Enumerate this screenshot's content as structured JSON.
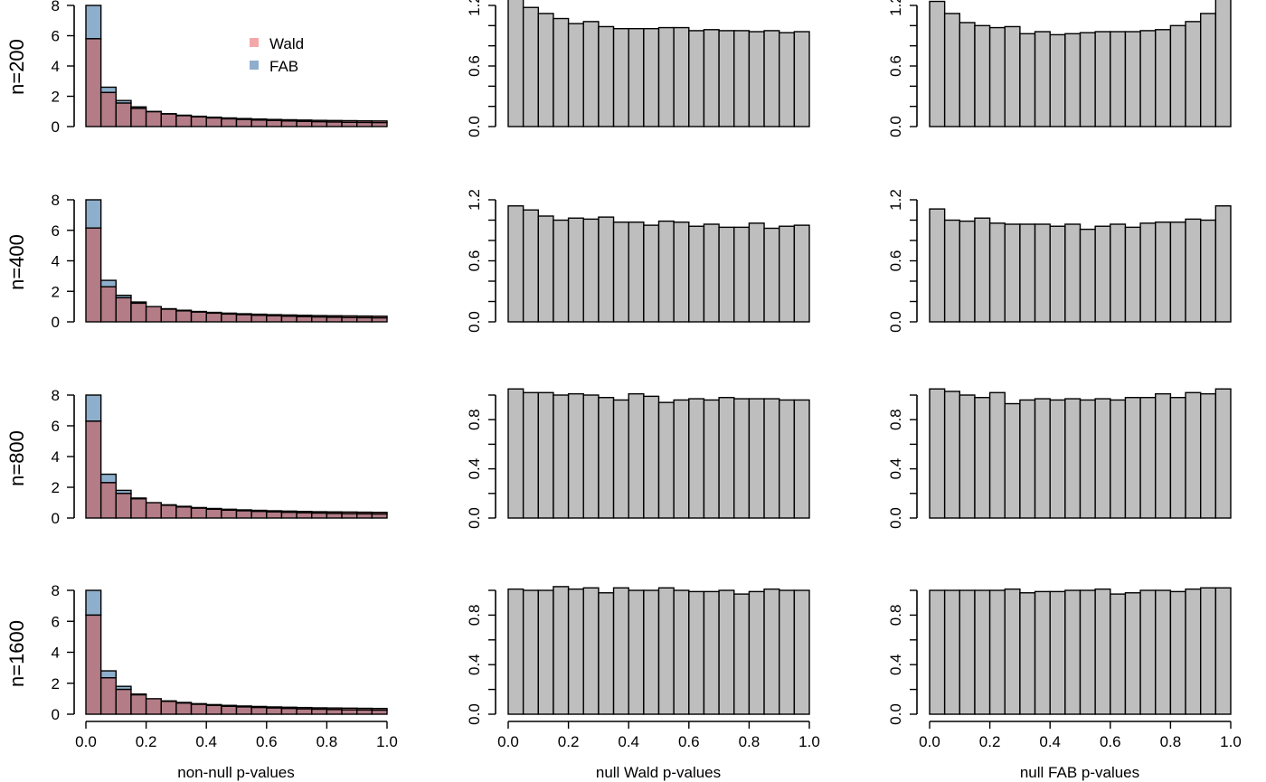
{
  "figure": {
    "row_labels": [
      "n=200",
      "n=400",
      "n=800",
      "n=1600"
    ],
    "x_labels": [
      "non-null p-values",
      "null Wald p-values",
      "null FAB p-values"
    ],
    "legend": {
      "placement": "top-right of first panel",
      "entries": [
        {
          "label": "Wald",
          "color": "#f4a7a9"
        },
        {
          "label": "FAB",
          "color": "#8faecd"
        }
      ]
    },
    "colors": {
      "wald": "#d98a8e",
      "fab": "#8eafcc",
      "overlap": "#b47c87",
      "null_bars": "#bebebe"
    }
  },
  "chart_data": [
    {
      "id": "nonnull-200",
      "type": "bar",
      "histogram": "overlaid",
      "row_label": "n=200",
      "xlabel": "",
      "xlim": [
        0,
        1
      ],
      "ylim": [
        0,
        8
      ],
      "yticks": [
        0,
        2,
        4,
        6,
        8
      ],
      "xticks": [],
      "bin_edges_step": 0.05,
      "series": [
        {
          "name": "Wald",
          "values": [
            5.8,
            2.25,
            1.55,
            1.2,
            0.98,
            0.85,
            0.75,
            0.68,
            0.62,
            0.57,
            0.53,
            0.5,
            0.47,
            0.45,
            0.43,
            0.41,
            0.4,
            0.39,
            0.38,
            0.37
          ]
        },
        {
          "name": "FAB",
          "values": [
            8.1,
            2.6,
            1.72,
            1.3,
            1.0,
            0.83,
            0.72,
            0.64,
            0.57,
            0.51,
            0.47,
            0.43,
            0.4,
            0.37,
            0.34,
            0.32,
            0.3,
            0.28,
            0.27,
            0.26
          ]
        }
      ]
    },
    {
      "id": "wald-200",
      "type": "bar",
      "row_label": "n=200",
      "xlabel": "",
      "xlim": [
        0,
        1
      ],
      "ylim": [
        0,
        1.4
      ],
      "yticks": [
        0.0,
        0.6,
        1.2
      ],
      "yticks_minor": [
        0.2,
        0.4,
        0.8,
        1.0
      ],
      "xticks": [],
      "values": [
        1.32,
        1.18,
        1.12,
        1.07,
        1.02,
        1.04,
        0.99,
        0.97,
        0.97,
        0.97,
        0.98,
        0.98,
        0.95,
        0.96,
        0.95,
        0.95,
        0.94,
        0.95,
        0.93,
        0.94
      ]
    },
    {
      "id": "fab-200",
      "type": "bar",
      "row_label": "n=200",
      "xlabel": "",
      "xlim": [
        0,
        1
      ],
      "ylim": [
        0,
        1.4
      ],
      "yticks": [
        0.0,
        0.6,
        1.2
      ],
      "yticks_minor": [
        0.2,
        0.4,
        0.8,
        1.0
      ],
      "xticks": [],
      "values": [
        1.24,
        1.12,
        1.03,
        1.0,
        0.98,
        0.99,
        0.92,
        0.94,
        0.91,
        0.92,
        0.93,
        0.94,
        0.94,
        0.94,
        0.95,
        0.96,
        1.0,
        1.04,
        1.12,
        1.32
      ]
    },
    {
      "id": "nonnull-400",
      "type": "bar",
      "histogram": "overlaid",
      "row_label": "n=400",
      "xlabel": "",
      "xlim": [
        0,
        1
      ],
      "ylim": [
        0,
        8
      ],
      "yticks": [
        0,
        2,
        4,
        6,
        8
      ],
      "xticks": [],
      "series": [
        {
          "name": "Wald",
          "values": [
            6.15,
            2.3,
            1.58,
            1.22,
            1.0,
            0.86,
            0.76,
            0.68,
            0.62,
            0.57,
            0.53,
            0.5,
            0.47,
            0.45,
            0.43,
            0.41,
            0.4,
            0.39,
            0.38,
            0.37
          ]
        },
        {
          "name": "FAB",
          "values": [
            8.4,
            2.72,
            1.74,
            1.3,
            1.0,
            0.83,
            0.72,
            0.64,
            0.57,
            0.51,
            0.47,
            0.43,
            0.4,
            0.37,
            0.34,
            0.32,
            0.3,
            0.28,
            0.27,
            0.26
          ]
        }
      ]
    },
    {
      "id": "wald-400",
      "type": "bar",
      "row_label": "n=400",
      "xlabel": "",
      "xlim": [
        0,
        1
      ],
      "ylim": [
        0,
        1.2
      ],
      "yticks": [
        0.0,
        0.6,
        1.2
      ],
      "yticks_minor": [
        0.2,
        0.4,
        0.8,
        1.0
      ],
      "xticks": [],
      "values": [
        1.14,
        1.1,
        1.04,
        1.0,
        1.02,
        1.01,
        1.03,
        0.98,
        0.98,
        0.95,
        0.99,
        0.98,
        0.94,
        0.96,
        0.93,
        0.93,
        0.97,
        0.92,
        0.94,
        0.95
      ]
    },
    {
      "id": "fab-400",
      "type": "bar",
      "row_label": "n=400",
      "xlabel": "",
      "xlim": [
        0,
        1
      ],
      "ylim": [
        0,
        1.2
      ],
      "yticks": [
        0.0,
        0.6,
        1.2
      ],
      "yticks_minor": [
        0.2,
        0.4,
        0.8,
        1.0
      ],
      "xticks": [],
      "values": [
        1.11,
        1.0,
        0.99,
        1.02,
        0.97,
        0.96,
        0.96,
        0.96,
        0.94,
        0.96,
        0.91,
        0.94,
        0.96,
        0.93,
        0.97,
        0.98,
        0.98,
        1.01,
        1.0,
        1.14
      ]
    },
    {
      "id": "nonnull-800",
      "type": "bar",
      "histogram": "overlaid",
      "row_label": "n=800",
      "xlabel": "",
      "xlim": [
        0,
        1
      ],
      "ylim": [
        0,
        8
      ],
      "yticks": [
        0,
        2,
        4,
        6,
        8
      ],
      "xticks": [],
      "series": [
        {
          "name": "Wald",
          "values": [
            6.3,
            2.3,
            1.6,
            1.25,
            1.0,
            0.86,
            0.76,
            0.68,
            0.62,
            0.57,
            0.53,
            0.5,
            0.47,
            0.45,
            0.43,
            0.41,
            0.4,
            0.39,
            0.38,
            0.37
          ]
        },
        {
          "name": "FAB",
          "values": [
            8.5,
            2.85,
            1.8,
            1.3,
            1.0,
            0.83,
            0.72,
            0.64,
            0.57,
            0.51,
            0.47,
            0.43,
            0.4,
            0.37,
            0.34,
            0.32,
            0.3,
            0.28,
            0.27,
            0.26
          ]
        }
      ]
    },
    {
      "id": "wald-800",
      "type": "bar",
      "row_label": "n=800",
      "xlabel": "",
      "xlim": [
        0,
        1
      ],
      "ylim": [
        0,
        1.0
      ],
      "yticks": [
        0.0,
        0.4,
        0.8
      ],
      "yticks_minor": [
        0.2,
        0.6,
        1.0
      ],
      "xticks": [],
      "values": [
        1.05,
        1.02,
        1.02,
        1.0,
        1.01,
        1.0,
        0.98,
        0.96,
        1.01,
        0.99,
        0.94,
        0.96,
        0.97,
        0.96,
        0.98,
        0.97,
        0.97,
        0.97,
        0.96,
        0.96
      ]
    },
    {
      "id": "fab-800",
      "type": "bar",
      "row_label": "n=800",
      "xlabel": "",
      "xlim": [
        0,
        1
      ],
      "ylim": [
        0,
        1.0
      ],
      "yticks": [
        0.0,
        0.4,
        0.8
      ],
      "yticks_minor": [
        0.2,
        0.6,
        1.0
      ],
      "xticks": [],
      "values": [
        1.05,
        1.03,
        1.0,
        0.98,
        1.02,
        0.93,
        0.96,
        0.97,
        0.96,
        0.97,
        0.96,
        0.97,
        0.96,
        0.98,
        0.98,
        1.01,
        0.98,
        1.02,
        1.01,
        1.05
      ]
    },
    {
      "id": "nonnull-1600",
      "type": "bar",
      "histogram": "overlaid",
      "row_label": "n=1600",
      "xlabel": "non-null p-values",
      "xlim": [
        0,
        1
      ],
      "ylim": [
        0,
        8
      ],
      "yticks": [
        0,
        2,
        4,
        6,
        8
      ],
      "xticks": [
        0.0,
        0.2,
        0.4,
        0.6,
        0.8,
        1.0
      ],
      "series": [
        {
          "name": "Wald",
          "values": [
            6.4,
            2.35,
            1.6,
            1.25,
            1.0,
            0.86,
            0.76,
            0.68,
            0.62,
            0.57,
            0.53,
            0.5,
            0.47,
            0.45,
            0.43,
            0.41,
            0.4,
            0.39,
            0.38,
            0.37
          ]
        },
        {
          "name": "FAB",
          "values": [
            8.7,
            2.8,
            1.8,
            1.3,
            1.0,
            0.83,
            0.72,
            0.64,
            0.57,
            0.51,
            0.47,
            0.43,
            0.4,
            0.37,
            0.34,
            0.32,
            0.3,
            0.28,
            0.27,
            0.26
          ]
        }
      ]
    },
    {
      "id": "wald-1600",
      "type": "bar",
      "row_label": "n=1600",
      "xlabel": "null Wald p-values",
      "xlim": [
        0,
        1
      ],
      "ylim": [
        0,
        1.0
      ],
      "yticks": [
        0.0,
        0.4,
        0.8
      ],
      "yticks_minor": [
        0.2,
        0.6,
        1.0
      ],
      "xticks": [
        0.0,
        0.2,
        0.4,
        0.6,
        0.8,
        1.0
      ],
      "values": [
        1.01,
        1.0,
        1.0,
        1.03,
        1.01,
        1.02,
        0.98,
        1.02,
        1.0,
        1.0,
        1.02,
        1.0,
        0.99,
        0.99,
        1.0,
        0.97,
        0.99,
        1.01,
        1.0,
        1.0
      ]
    },
    {
      "id": "fab-1600",
      "type": "bar",
      "row_label": "n=1600",
      "xlabel": "null FAB p-values",
      "xlim": [
        0,
        1
      ],
      "ylim": [
        0,
        1.0
      ],
      "yticks": [
        0.0,
        0.4,
        0.8
      ],
      "yticks_minor": [
        0.2,
        0.6,
        1.0
      ],
      "xticks": [
        0.0,
        0.2,
        0.4,
        0.6,
        0.8,
        1.0
      ],
      "values": [
        1.0,
        1.0,
        1.0,
        1.0,
        1.0,
        1.01,
        0.98,
        0.99,
        0.99,
        1.0,
        1.0,
        1.01,
        0.97,
        0.98,
        1.0,
        1.0,
        0.99,
        1.01,
        1.02,
        1.02
      ]
    }
  ]
}
